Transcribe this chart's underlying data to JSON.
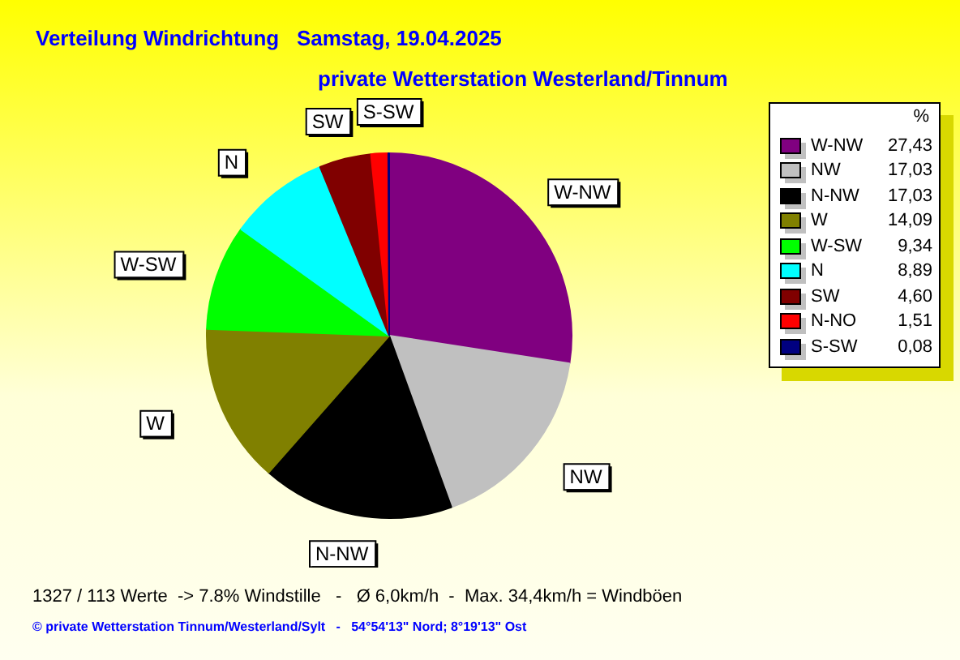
{
  "chart_data": {
    "type": "pie",
    "title": "Verteilung Windrichtung   Samstag, 19.04.2025",
    "subtitle": "private Wetterstation Westerland/Tinnum",
    "categories": [
      "W-NW",
      "NW",
      "N-NW",
      "W",
      "W-SW",
      "N",
      "SW",
      "N-NO",
      "S-SW"
    ],
    "values": [
      27.43,
      17.03,
      17.03,
      14.09,
      9.34,
      8.89,
      4.6,
      1.51,
      0.08
    ],
    "colors": [
      "#800080",
      "#c0c0c0",
      "#000000",
      "#808000",
      "#00ff00",
      "#00ffff",
      "#800000",
      "#ff0000",
      "#000080"
    ],
    "value_labels": [
      "27,43",
      "17,03",
      "17,03",
      "14,09",
      "9,34",
      "8,89",
      "4,60",
      "1,51",
      "0,08"
    ],
    "legend": "right",
    "legend_title": "%",
    "annotations": [
      "1327 / 113 Werte  -> 7.8% Windstille   -   Ø 6,0km/h  -  Max. 34,4km/h = Windböen",
      "© private Wetterstation Tinnum/Westerland/Sylt   -   54°54'13\" Nord; 8°19'13\" Ost"
    ]
  }
}
